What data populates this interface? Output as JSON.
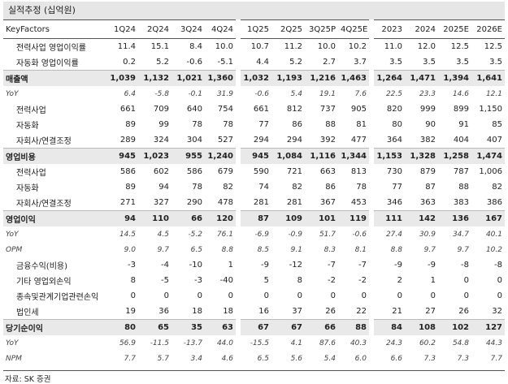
{
  "title": "실적추정 (십억원)",
  "table": {
    "header": [
      "KeyFactors",
      "1Q24",
      "2Q24",
      "3Q24",
      "4Q24",
      "1Q25",
      "2Q25",
      "3Q25P",
      "4Q25E",
      "2023",
      "2024",
      "2025E",
      "2026E"
    ],
    "rows": [
      {
        "kind": "item",
        "label": "전력사업 영업이익률",
        "values": [
          "11.4",
          "15.1",
          "8.4",
          "10.0",
          "10.7",
          "11.2",
          "10.0",
          "10.2",
          "11.0",
          "12.0",
          "12.5",
          "12.5"
        ]
      },
      {
        "kind": "item",
        "label": "자동화 영업이익률",
        "values": [
          "0.2",
          "5.2",
          "-0.6",
          "-5.1",
          "4.4",
          "5.2",
          "2.7",
          "3.7",
          "3.5",
          "3.5",
          "3.5",
          "3.5"
        ]
      },
      {
        "kind": "total",
        "label": "매출액",
        "values": [
          "1,039",
          "1,132",
          "1,021",
          "1,360",
          "1,032",
          "1,193",
          "1,216",
          "1,463",
          "1,264",
          "1,471",
          "1,394",
          "1,641"
        ]
      },
      {
        "kind": "ratio",
        "label": "YoY",
        "values": [
          "6.4",
          "-5.8",
          "-0.1",
          "31.9",
          "-0.6",
          "5.4",
          "19.1",
          "7.6",
          "22.5",
          "23.3",
          "14.6",
          "12.1"
        ]
      },
      {
        "kind": "item",
        "label": "전력사업",
        "values": [
          "661",
          "709",
          "640",
          "754",
          "661",
          "812",
          "737",
          "905",
          "820",
          "999",
          "899",
          "1,150"
        ]
      },
      {
        "kind": "item",
        "label": "자동화",
        "values": [
          "89",
          "99",
          "78",
          "78",
          "77",
          "86",
          "88",
          "81",
          "80",
          "90",
          "91",
          "85"
        ]
      },
      {
        "kind": "item",
        "label": "자회사/연결조정",
        "values": [
          "289",
          "324",
          "304",
          "527",
          "294",
          "294",
          "392",
          "477",
          "364",
          "382",
          "404",
          "407"
        ]
      },
      {
        "kind": "total",
        "label": "영업비용",
        "values": [
          "945",
          "1,023",
          "955",
          "1,240",
          "945",
          "1,084",
          "1,116",
          "1,344",
          "1,153",
          "1,328",
          "1,258",
          "1,474"
        ]
      },
      {
        "kind": "item",
        "label": "전력사업",
        "values": [
          "586",
          "602",
          "586",
          "679",
          "590",
          "721",
          "663",
          "813",
          "730",
          "879",
          "787",
          "1,006"
        ]
      },
      {
        "kind": "item",
        "label": "자동화",
        "values": [
          "89",
          "94",
          "78",
          "82",
          "74",
          "82",
          "86",
          "78",
          "77",
          "87",
          "88",
          "82"
        ]
      },
      {
        "kind": "item",
        "label": "자회사/연결조정",
        "values": [
          "271",
          "327",
          "290",
          "478",
          "281",
          "281",
          "367",
          "453",
          "346",
          "363",
          "383",
          "386"
        ]
      },
      {
        "kind": "total",
        "label": "영업이익",
        "values": [
          "94",
          "110",
          "66",
          "120",
          "87",
          "109",
          "101",
          "119",
          "111",
          "142",
          "136",
          "167"
        ]
      },
      {
        "kind": "ratio",
        "label": "YoY",
        "values": [
          "14.5",
          "4.5",
          "-5.2",
          "76.1",
          "-6.9",
          "-0.9",
          "51.7",
          "-0.6",
          "27.4",
          "30.9",
          "34.7",
          "40.1"
        ]
      },
      {
        "kind": "ratio",
        "label": "OPM",
        "values": [
          "9.0",
          "9.7",
          "6.5",
          "8.8",
          "8.5",
          "9.1",
          "8.3",
          "8.1",
          "8.8",
          "9.7",
          "9.7",
          "10.2"
        ]
      },
      {
        "kind": "item",
        "label": "금융수익(비용)",
        "values": [
          "-3",
          "-4",
          "-10",
          "1",
          "-9",
          "-12",
          "-7",
          "-7",
          "-9",
          "-9",
          "-8",
          "-8"
        ]
      },
      {
        "kind": "item",
        "label": "기타 영업외손익",
        "values": [
          "8",
          "-5",
          "-3",
          "-40",
          "5",
          "8",
          "-2",
          "-2",
          "2",
          "1",
          "0",
          "0"
        ]
      },
      {
        "kind": "item",
        "label": "종속및관계기업관련손익",
        "values": [
          "0",
          "0",
          "0",
          "0",
          "0",
          "0",
          "0",
          "0",
          "0",
          "0",
          "0",
          "0"
        ]
      },
      {
        "kind": "item",
        "label": "법인세",
        "values": [
          "19",
          "36",
          "18",
          "18",
          "16",
          "37",
          "26",
          "22",
          "21",
          "27",
          "26",
          "32"
        ]
      },
      {
        "kind": "total",
        "label": "당기순이익",
        "values": [
          "80",
          "65",
          "35",
          "63",
          "67",
          "67",
          "66",
          "88",
          "84",
          "108",
          "102",
          "127"
        ]
      },
      {
        "kind": "ratio",
        "label": "YoY",
        "values": [
          "56.9",
          "-11.5",
          "-13.7",
          "44.0",
          "-15.5",
          "4.1",
          "87.6",
          "40.3",
          "24.3",
          "60.2",
          "54.8",
          "44.3"
        ]
      },
      {
        "kind": "ratio",
        "label": "NPM",
        "values": [
          "7.7",
          "5.7",
          "3.4",
          "4.6",
          "6.5",
          "5.6",
          "5.4",
          "6.0",
          "6.6",
          "7.3",
          "7.3",
          "7.7"
        ]
      }
    ]
  },
  "source": "자료: SK 증권"
}
